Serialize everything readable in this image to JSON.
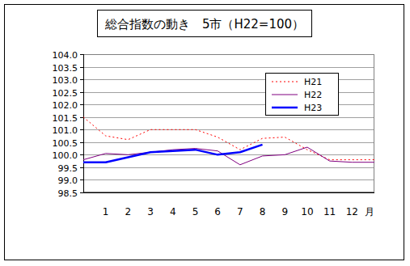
{
  "chart_data": {
    "type": "line",
    "title": "総合指数の動き　5市（H22=100）",
    "xlabel": "月",
    "categories": [
      null,
      "1",
      "2",
      "3",
      "4",
      "5",
      "6",
      "7",
      "8",
      "9",
      "10",
      "11",
      "12",
      null
    ],
    "series": [
      {
        "name": "H21",
        "color": "#ff0000",
        "line_style": "dotted",
        "values": [
          101.5,
          100.75,
          100.6,
          101.0,
          101.0,
          101.0,
          100.7,
          100.2,
          100.65,
          100.7,
          100.2,
          99.8,
          99.8,
          99.8
        ]
      },
      {
        "name": "H22",
        "color": "#800080",
        "line_style": "solid",
        "values": [
          99.8,
          100.05,
          100.0,
          100.1,
          100.2,
          100.25,
          100.15,
          99.6,
          99.95,
          100.0,
          100.3,
          99.75,
          99.7,
          99.7
        ]
      },
      {
        "name": "H23",
        "color": "#0000ff",
        "line_style": "solid",
        "values": [
          99.7,
          99.7,
          99.9,
          100.1,
          100.15,
          100.2,
          100.0,
          100.1,
          100.4,
          null,
          null,
          null,
          null,
          null
        ]
      }
    ],
    "ylim": [
      98.5,
      104.0
    ],
    "yticks": [
      98.5,
      {
        "value": 99,
        "label": "99.0"
      },
      99.5,
      {
        "value": 100,
        "label": "100.0"
      },
      100.5,
      {
        "value": 101,
        "label": "101.0"
      },
      101.5,
      {
        "value": 102,
        "label": "102.0"
      },
      102.5,
      {
        "value": 103,
        "label": "103.0"
      },
      103.5,
      {
        "value": 104,
        "label": "104.0"
      }
    ],
    "grid": true,
    "legend": "upper right"
  }
}
